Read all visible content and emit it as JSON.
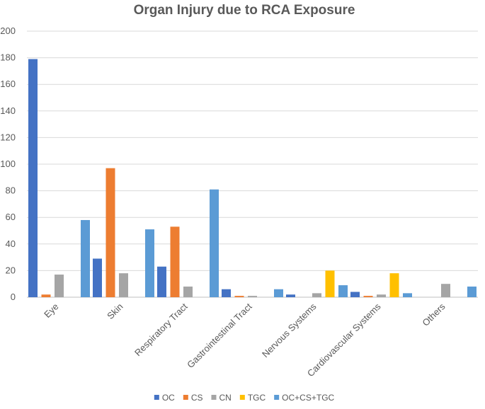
{
  "chart_data": {
    "type": "bar",
    "title": "Organ Injury due to RCA Exposure",
    "categories": [
      "Eye",
      "Skin",
      "Respiratory Tract",
      "Gastrointestinal Tract",
      "Nervous Systems",
      "Cardiovascular Systems",
      "Others"
    ],
    "series": [
      {
        "name": "OC",
        "color": "#4472c4",
        "values": [
          179,
          29,
          23,
          6,
          2,
          4,
          0
        ]
      },
      {
        "name": "CS",
        "color": "#ed7d31",
        "values": [
          2,
          97,
          53,
          1,
          0,
          1,
          0
        ]
      },
      {
        "name": "CN",
        "color": "#a5a5a5",
        "values": [
          17,
          18,
          8,
          1,
          3,
          2,
          10
        ]
      },
      {
        "name": "TGC",
        "color": "#ffc000",
        "values": [
          0,
          0,
          0,
          0,
          20,
          18,
          0
        ]
      },
      {
        "name": "OC+CS+TGC",
        "color": "#5b9bd5",
        "values": [
          58,
          51,
          81,
          6,
          9,
          3,
          8
        ]
      }
    ],
    "ylim": [
      0,
      200
    ],
    "yticks": [
      "0",
      "20",
      "40",
      "60",
      "80",
      "100",
      "120",
      "140",
      "160",
      "180",
      "200"
    ],
    "grid": true,
    "legend_position": "bottom"
  }
}
